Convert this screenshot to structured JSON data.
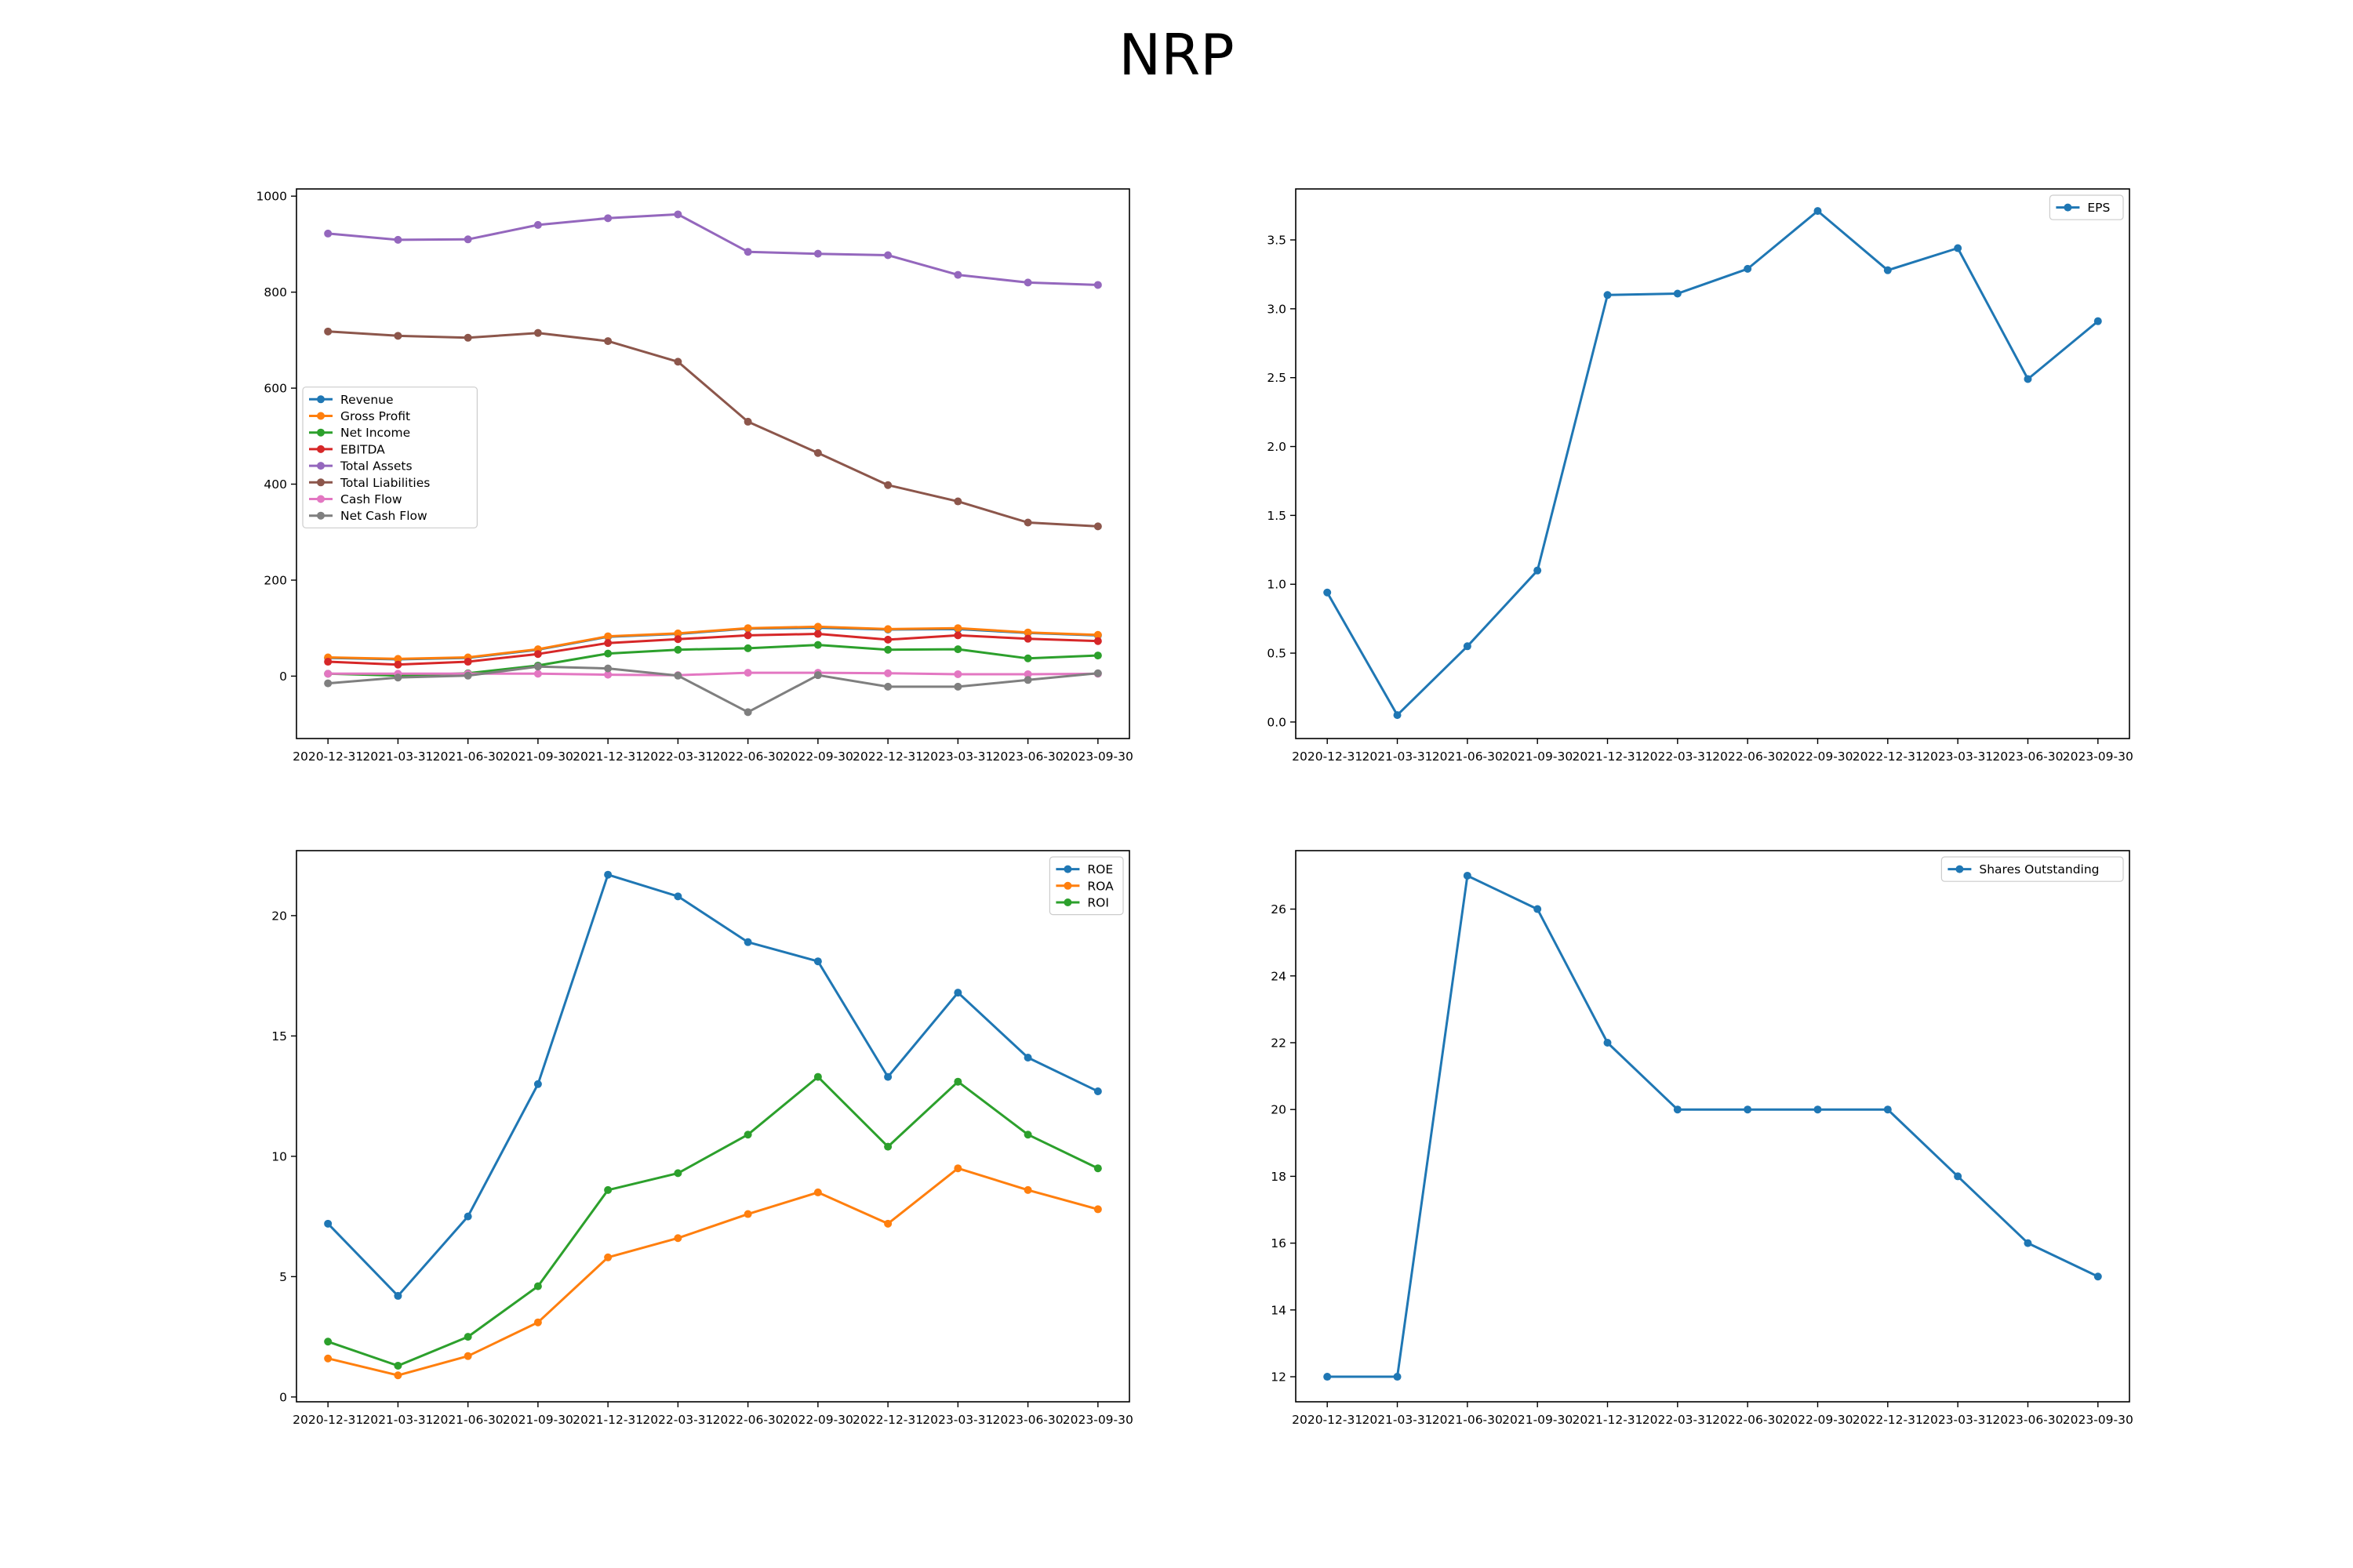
{
  "figure": {
    "title": "NRP"
  },
  "chart_data": [
    {
      "type": "line",
      "title": "",
      "categories": [
        "2020-12-31",
        "2021-03-31",
        "2021-06-30",
        "2021-09-30",
        "2021-12-31",
        "2022-03-31",
        "2022-06-30",
        "2022-09-30",
        "2022-12-31",
        "2023-03-31",
        "2023-06-30",
        "2023-09-30"
      ],
      "ylim": [
        -130,
        1015
      ],
      "yticks": [
        0,
        200,
        400,
        600,
        800,
        1000
      ],
      "legend": "center-left",
      "grid": false,
      "series": [
        {
          "name": "Revenue",
          "color": "#1f77b4",
          "values": [
            38,
            35,
            38,
            55,
            82,
            88,
            99,
            101,
            97,
            98,
            90,
            85
          ]
        },
        {
          "name": "Gross Profit",
          "color": "#ff7f0e",
          "values": [
            39,
            36,
            39,
            56,
            83,
            89,
            100,
            103,
            98,
            100,
            91,
            86
          ]
        },
        {
          "name": "Net Income",
          "color": "#2ca02c",
          "values": [
            5,
            1,
            6,
            22,
            47,
            55,
            58,
            65,
            55,
            56,
            37,
            43
          ]
        },
        {
          "name": "EBITDA",
          "color": "#d62728",
          "values": [
            30,
            24,
            30,
            46,
            69,
            77,
            85,
            88,
            76,
            85,
            78,
            73
          ]
        },
        {
          "name": "Total Assets",
          "color": "#9467bd",
          "values": [
            922,
            909,
            910,
            940,
            954,
            962,
            884,
            880,
            877,
            836,
            820,
            815
          ]
        },
        {
          "name": "Total Liabilities",
          "color": "#8c564b",
          "values": [
            718,
            709,
            705,
            715,
            698,
            655,
            530,
            465,
            398,
            364,
            320,
            312
          ]
        },
        {
          "name": "Cash Flow",
          "color": "#e377c2",
          "values": [
            5,
            5,
            5,
            5,
            3,
            2,
            7,
            7,
            6,
            4,
            4,
            5
          ]
        },
        {
          "name": "Net Cash Flow",
          "color": "#7f7f7f",
          "values": [
            -15,
            -3,
            1,
            20,
            16,
            1,
            -75,
            2,
            -22,
            -22,
            -8,
            6
          ]
        }
      ]
    },
    {
      "type": "line",
      "title": "",
      "categories": [
        "2020-12-31",
        "2021-03-31",
        "2021-06-30",
        "2021-09-30",
        "2021-12-31",
        "2022-03-31",
        "2022-06-30",
        "2022-09-30",
        "2022-12-31",
        "2023-03-31",
        "2023-06-30",
        "2023-09-30"
      ],
      "ylim": [
        -0.12,
        3.87
      ],
      "yticks": [
        0.0,
        0.5,
        1.0,
        1.5,
        2.0,
        2.5,
        3.0,
        3.5
      ],
      "legend": "top-right",
      "grid": false,
      "series": [
        {
          "name": "EPS",
          "color": "#1f77b4",
          "values": [
            0.94,
            0.05,
            0.55,
            1.1,
            3.1,
            3.11,
            3.29,
            3.71,
            3.28,
            3.44,
            2.49,
            2.91
          ]
        }
      ]
    },
    {
      "type": "line",
      "title": "",
      "categories": [
        "2020-12-31",
        "2021-03-31",
        "2021-06-30",
        "2021-09-30",
        "2021-12-31",
        "2022-03-31",
        "2022-06-30",
        "2022-09-30",
        "2022-12-31",
        "2023-03-31",
        "2023-06-30",
        "2023-09-30"
      ],
      "ylim": [
        -0.2,
        22.7
      ],
      "yticks": [
        0,
        5,
        10,
        15,
        20
      ],
      "legend": "top-right",
      "grid": false,
      "series": [
        {
          "name": "ROE",
          "color": "#1f77b4",
          "values": [
            7.2,
            4.2,
            7.5,
            13.0,
            21.7,
            20.8,
            18.9,
            18.1,
            13.3,
            16.8,
            14.1,
            12.7
          ]
        },
        {
          "name": "ROA",
          "color": "#ff7f0e",
          "values": [
            1.6,
            0.9,
            1.7,
            3.1,
            5.8,
            6.6,
            7.6,
            8.5,
            7.2,
            9.5,
            8.6,
            7.8
          ]
        },
        {
          "name": "ROI",
          "color": "#2ca02c",
          "values": [
            2.3,
            1.3,
            2.5,
            4.6,
            8.6,
            9.3,
            10.9,
            13.3,
            10.4,
            13.1,
            10.9,
            9.5
          ]
        }
      ]
    },
    {
      "type": "line",
      "title": "",
      "categories": [
        "2020-12-31",
        "2021-03-31",
        "2021-06-30",
        "2021-09-30",
        "2021-12-31",
        "2022-03-31",
        "2022-06-30",
        "2022-09-30",
        "2022-12-31",
        "2023-03-31",
        "2023-06-30",
        "2023-09-30"
      ],
      "ylim": [
        11.25,
        27.75
      ],
      "yticks": [
        12,
        14,
        16,
        18,
        20,
        22,
        24,
        26
      ],
      "legend": "top-right",
      "grid": false,
      "series": [
        {
          "name": "Shares Outstanding",
          "color": "#1f77b4",
          "values": [
            12,
            12,
            27,
            26,
            22,
            20,
            20,
            20,
            20,
            18,
            16,
            15
          ]
        }
      ]
    }
  ]
}
